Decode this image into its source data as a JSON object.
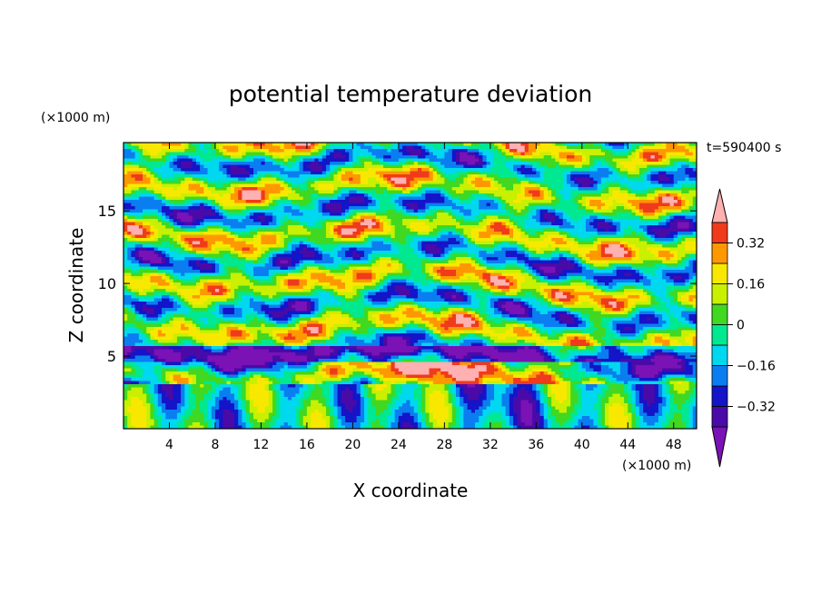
{
  "chart_data": {
    "type": "heatmap",
    "title": "potential temperature deviation",
    "xlabel": "X coordinate",
    "ylabel": "Z coordinate",
    "x_unit": "(×1000 m)",
    "y_unit": "(×1000 m)",
    "time_label": "t=590400 s",
    "xlim": [
      0,
      50
    ],
    "ylim": [
      0,
      19.7
    ],
    "x_ticks": [
      4,
      8,
      12,
      16,
      20,
      24,
      28,
      32,
      36,
      40,
      44,
      48
    ],
    "y_ticks": [
      5,
      10,
      15
    ],
    "colorbar": {
      "levels": [
        -0.4,
        -0.32,
        -0.24,
        -0.16,
        -0.08,
        0,
        0.08,
        0.16,
        0.24,
        0.32,
        0.4
      ],
      "tick_values": [
        -0.32,
        -0.16,
        0,
        0.16,
        0.32
      ],
      "tick_labels": [
        "-0.32",
        "-0.16",
        "0",
        "0.16",
        "0.32"
      ],
      "colors": [
        "#7a12b5",
        "#4a0aa8",
        "#1414c8",
        "#0a7ef0",
        "#00d8f0",
        "#00e890",
        "#40d820",
        "#c8f000",
        "#f8e800",
        "#ff9800",
        "#f03a1c",
        "#ffb0b0"
      ],
      "extend": "both"
    },
    "grid": false
  }
}
